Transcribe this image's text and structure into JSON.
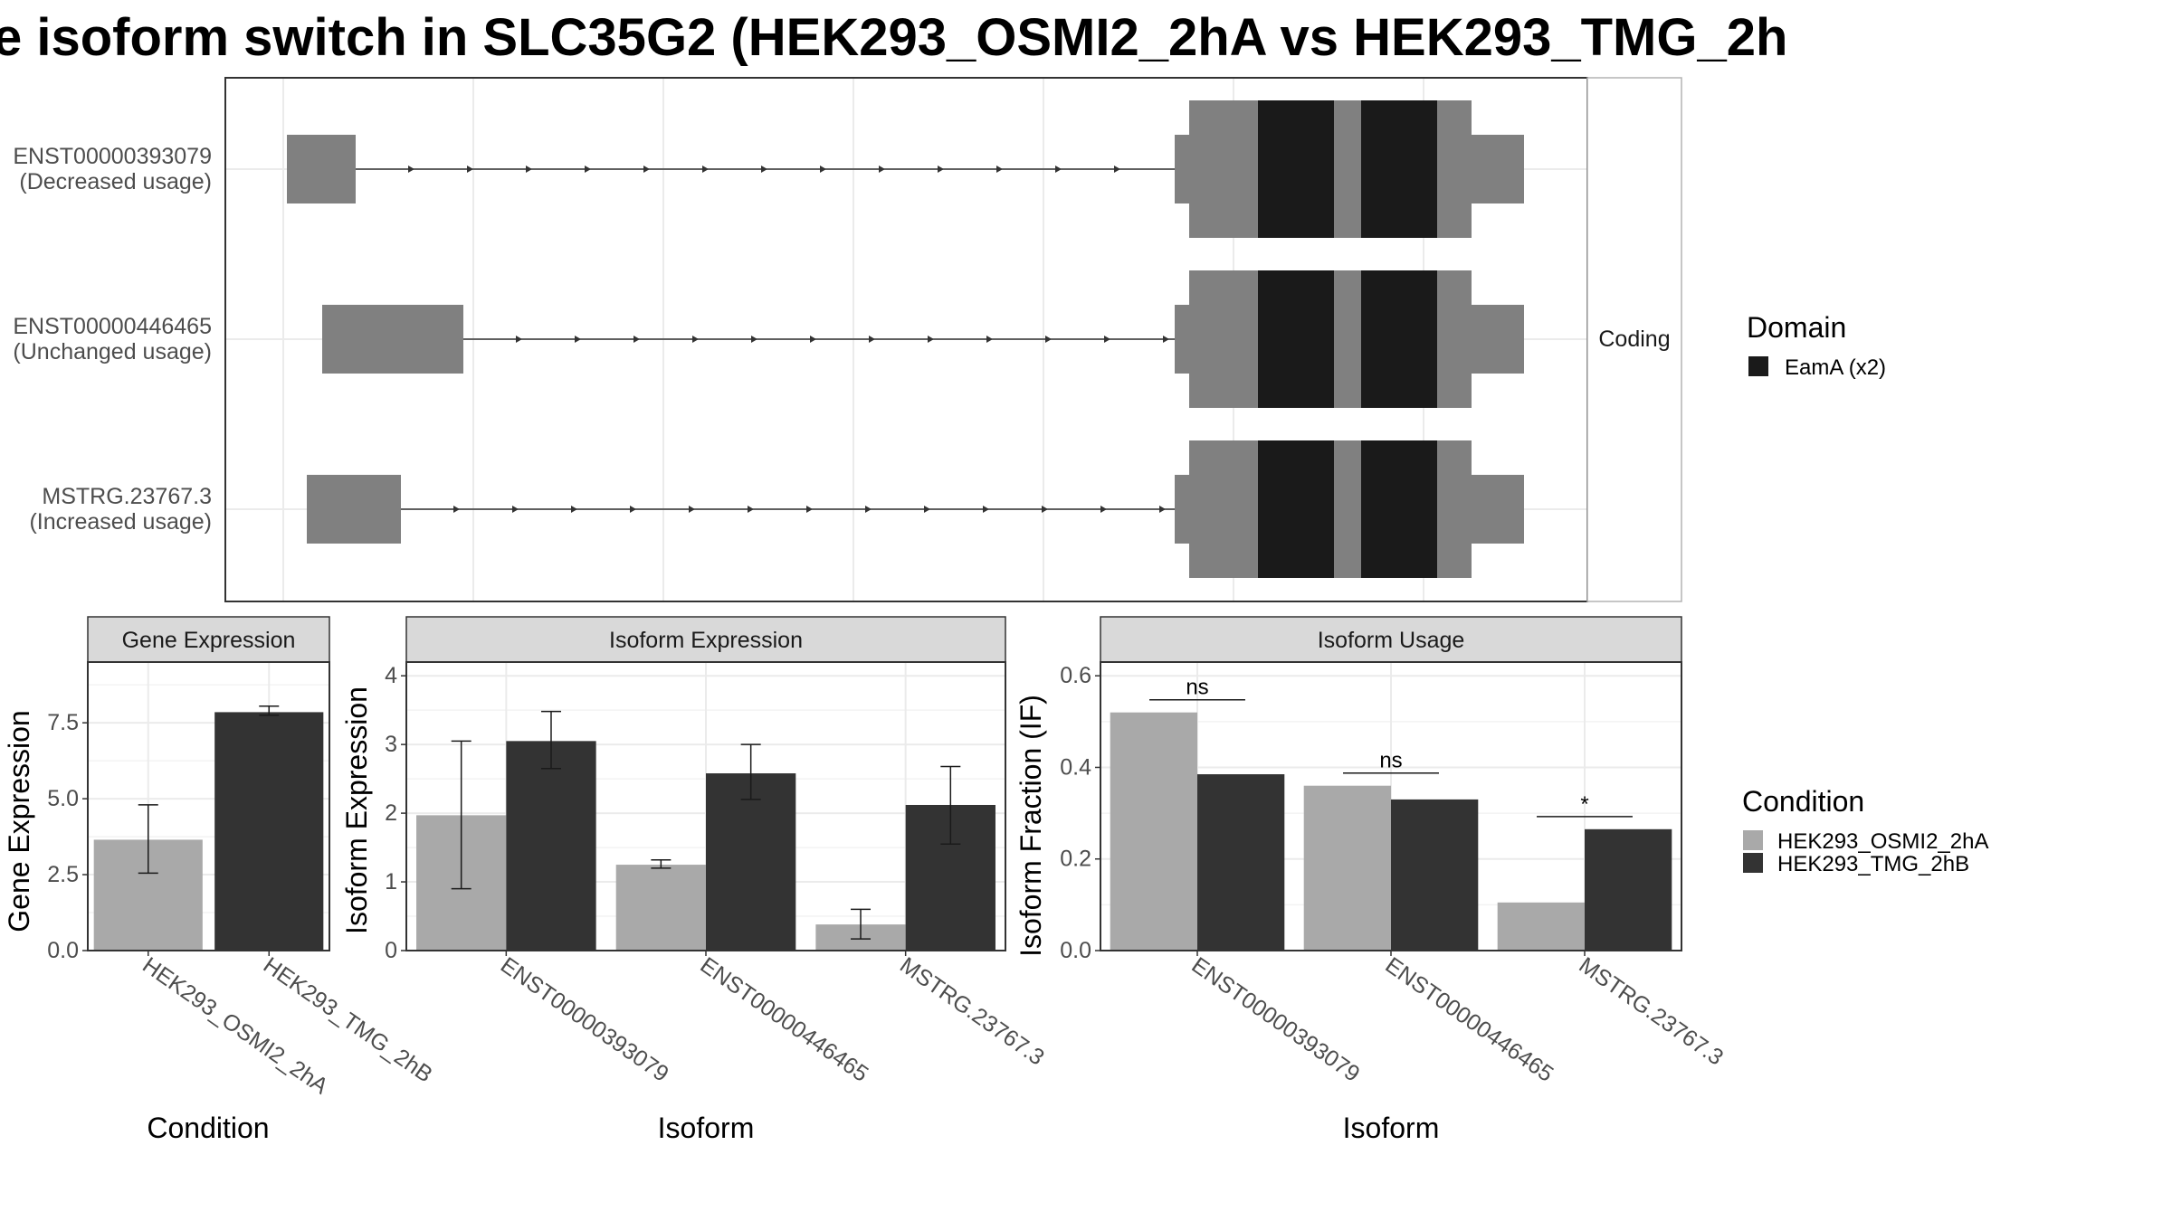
{
  "title": "e isoform switch in SLC35G2 (HEK293_OSMI2_2hA vs HEK293_TMG_2h",
  "colors": {
    "cond_a": "#a9a9a9",
    "cond_b": "#333333",
    "domain": "#1a1a1a",
    "exon": "#808080",
    "grid": "#ebebeb"
  },
  "chart_data": [
    {
      "type": "transcript-structure",
      "isoforms": [
        {
          "id": "ENST00000393079",
          "label": "ENST00000393079",
          "usage": "(Decreased usage)"
        },
        {
          "id": "ENST00000446465",
          "label": "ENST00000446465",
          "usage": "(Unchanged usage)"
        },
        {
          "id": "MSTRG.23767.3",
          "label": "MSTRG.23767.3",
          "usage": "(Increased usage)"
        }
      ],
      "facet": "Coding",
      "legend": {
        "title": "Domain",
        "items": [
          {
            "label": "EamA (x2)",
            "color": "#1a1a1a"
          }
        ]
      }
    },
    {
      "type": "bar",
      "title": "Gene Expression",
      "xlabel": "Condition",
      "ylabel": "Gene Expression",
      "ylim": [
        0,
        9.5
      ],
      "yticks": [
        "0.0",
        "2.5",
        "5.0",
        "7.5"
      ],
      "categories": [
        "HEK293_OSMI2_2hA",
        "HEK293_TMG_2hB"
      ],
      "values": [
        3.65,
        7.85
      ],
      "err_low": [
        2.55,
        7.75
      ],
      "err_high": [
        4.8,
        8.05
      ]
    },
    {
      "type": "bar",
      "title": "Isoform Expression",
      "xlabel": "Isoform",
      "ylabel": "Isoform Expression",
      "ylim": [
        0,
        4.2
      ],
      "yticks": [
        "0",
        "1",
        "2",
        "3",
        "4"
      ],
      "categories": [
        "ENST00000393079",
        "ENST00000446465",
        "MSTRG.23767.3"
      ],
      "series": [
        {
          "name": "HEK293_OSMI2_2hA",
          "values": [
            1.97,
            1.25,
            0.38
          ],
          "err_low": [
            0.9,
            1.2,
            0.17
          ],
          "err_high": [
            3.05,
            1.32,
            0.6
          ]
        },
        {
          "name": "HEK293_TMG_2hB",
          "values": [
            3.05,
            2.58,
            2.12
          ],
          "err_low": [
            2.65,
            2.2,
            1.55
          ],
          "err_high": [
            3.48,
            3.0,
            2.68
          ]
        }
      ]
    },
    {
      "type": "bar",
      "title": "Isoform Usage",
      "xlabel": "Isoform",
      "ylabel": "Isoform Fraction (IF)",
      "ylim": [
        0,
        0.63
      ],
      "yticks": [
        "0.0",
        "0.2",
        "0.4",
        "0.6"
      ],
      "categories": [
        "ENST00000393079",
        "ENST00000446465",
        "MSTRG.23767.3"
      ],
      "series": [
        {
          "name": "HEK293_OSMI2_2hA",
          "values": [
            0.52,
            0.36,
            0.105
          ]
        },
        {
          "name": "HEK293_TMG_2hB",
          "values": [
            0.385,
            0.33,
            0.265
          ]
        }
      ],
      "significance": [
        "ns",
        "ns",
        "*"
      ]
    }
  ],
  "condition_legend": {
    "title": "Condition",
    "items": [
      {
        "label": "HEK293_OSMI2_2hA",
        "color": "#a9a9a9"
      },
      {
        "label": "HEK293_TMG_2hB",
        "color": "#333333"
      }
    ]
  }
}
